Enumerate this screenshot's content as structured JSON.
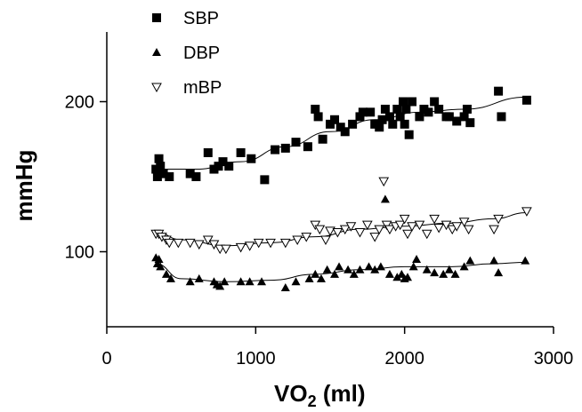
{
  "chart_data": {
    "type": "scatter",
    "title": "",
    "xlabel_main": "VO",
    "xlabel_sub": "2",
    "xlabel_unit": " (ml)",
    "ylabel": "mmHg",
    "xlim": [
      0,
      3000
    ],
    "ylim": [
      50,
      250
    ],
    "x_ticks": [
      0,
      1000,
      2000,
      3000
    ],
    "y_ticks": [
      100,
      200
    ],
    "legend_position": "top-left",
    "grid": false,
    "series": [
      {
        "name": "SBP",
        "marker": "filled-square",
        "color": "#000000",
        "points": [
          [
            330,
            155
          ],
          [
            340,
            150
          ],
          [
            350,
            162
          ],
          [
            360,
            157
          ],
          [
            380,
            152
          ],
          [
            420,
            150
          ],
          [
            560,
            152
          ],
          [
            600,
            150
          ],
          [
            680,
            166
          ],
          [
            720,
            155
          ],
          [
            750,
            157
          ],
          [
            780,
            160
          ],
          [
            820,
            157
          ],
          [
            900,
            166
          ],
          [
            970,
            162
          ],
          [
            1060,
            148
          ],
          [
            1130,
            168
          ],
          [
            1200,
            169
          ],
          [
            1270,
            173
          ],
          [
            1350,
            170
          ],
          [
            1400,
            195
          ],
          [
            1420,
            190
          ],
          [
            1450,
            175
          ],
          [
            1500,
            185
          ],
          [
            1530,
            188
          ],
          [
            1570,
            183
          ],
          [
            1600,
            180
          ],
          [
            1650,
            185
          ],
          [
            1700,
            190
          ],
          [
            1720,
            193
          ],
          [
            1770,
            193
          ],
          [
            1800,
            185
          ],
          [
            1830,
            183
          ],
          [
            1850,
            188
          ],
          [
            1870,
            195
          ],
          [
            1900,
            190
          ],
          [
            1920,
            185
          ],
          [
            1950,
            195
          ],
          [
            1970,
            190
          ],
          [
            1990,
            200
          ],
          [
            2000,
            185
          ],
          [
            2010,
            195
          ],
          [
            2030,
            178
          ],
          [
            2050,
            200
          ],
          [
            2100,
            190
          ],
          [
            2130,
            195
          ],
          [
            2160,
            193
          ],
          [
            2200,
            200
          ],
          [
            2230,
            195
          ],
          [
            2280,
            190
          ],
          [
            2300,
            190
          ],
          [
            2350,
            187
          ],
          [
            2400,
            190
          ],
          [
            2420,
            195
          ],
          [
            2440,
            186
          ],
          [
            2630,
            207
          ],
          [
            2650,
            190
          ],
          [
            2820,
            201
          ]
        ],
        "trend": [
          [
            330,
            155
          ],
          [
            600,
            155
          ],
          [
            900,
            160
          ],
          [
            1200,
            170
          ],
          [
            1500,
            180
          ],
          [
            1800,
            188
          ],
          [
            2100,
            193
          ],
          [
            2400,
            195
          ],
          [
            2820,
            203
          ]
        ]
      },
      {
        "name": "DBP",
        "marker": "filled-triangle",
        "color": "#000000",
        "points": [
          [
            330,
            96
          ],
          [
            340,
            92
          ],
          [
            350,
            95
          ],
          [
            360,
            90
          ],
          [
            400,
            85
          ],
          [
            430,
            82
          ],
          [
            560,
            80
          ],
          [
            620,
            82
          ],
          [
            720,
            80
          ],
          [
            740,
            78
          ],
          [
            760,
            77
          ],
          [
            790,
            80
          ],
          [
            900,
            80
          ],
          [
            960,
            80
          ],
          [
            1040,
            80
          ],
          [
            1200,
            76
          ],
          [
            1270,
            80
          ],
          [
            1360,
            82
          ],
          [
            1400,
            85
          ],
          [
            1440,
            82
          ],
          [
            1480,
            88
          ],
          [
            1530,
            85
          ],
          [
            1560,
            90
          ],
          [
            1620,
            88
          ],
          [
            1660,
            85
          ],
          [
            1700,
            88
          ],
          [
            1760,
            90
          ],
          [
            1800,
            88
          ],
          [
            1840,
            90
          ],
          [
            1870,
            135
          ],
          [
            1900,
            85
          ],
          [
            1950,
            83
          ],
          [
            1980,
            85
          ],
          [
            2000,
            82
          ],
          [
            2020,
            83
          ],
          [
            2060,
            90
          ],
          [
            2080,
            95
          ],
          [
            2150,
            88
          ],
          [
            2200,
            86
          ],
          [
            2260,
            85
          ],
          [
            2300,
            88
          ],
          [
            2340,
            85
          ],
          [
            2400,
            90
          ],
          [
            2440,
            94
          ],
          [
            2600,
            94
          ],
          [
            2630,
            86
          ],
          [
            2810,
            94
          ]
        ],
        "trend": [
          [
            330,
            92
          ],
          [
            500,
            82
          ],
          [
            800,
            80
          ],
          [
            1100,
            81
          ],
          [
            1400,
            85
          ],
          [
            1700,
            88
          ],
          [
            2000,
            90
          ],
          [
            2300,
            90
          ],
          [
            2600,
            92
          ],
          [
            2820,
            93
          ]
        ]
      },
      {
        "name": "mBP",
        "marker": "open-down-triangle",
        "color": "#000000",
        "points": [
          [
            330,
            112
          ],
          [
            350,
            112
          ],
          [
            370,
            110
          ],
          [
            400,
            108
          ],
          [
            420,
            106
          ],
          [
            480,
            106
          ],
          [
            560,
            106
          ],
          [
            620,
            105
          ],
          [
            680,
            108
          ],
          [
            720,
            105
          ],
          [
            760,
            102
          ],
          [
            800,
            102
          ],
          [
            900,
            103
          ],
          [
            960,
            104
          ],
          [
            1020,
            106
          ],
          [
            1100,
            106
          ],
          [
            1200,
            106
          ],
          [
            1280,
            108
          ],
          [
            1340,
            110
          ],
          [
            1400,
            118
          ],
          [
            1430,
            115
          ],
          [
            1470,
            108
          ],
          [
            1500,
            114
          ],
          [
            1550,
            113
          ],
          [
            1600,
            115
          ],
          [
            1640,
            117
          ],
          [
            1700,
            113
          ],
          [
            1750,
            118
          ],
          [
            1800,
            110
          ],
          [
            1830,
            115
          ],
          [
            1860,
            147
          ],
          [
            1880,
            118
          ],
          [
            1900,
            115
          ],
          [
            1940,
            117
          ],
          [
            1970,
            118
          ],
          [
            2000,
            122
          ],
          [
            2020,
            112
          ],
          [
            2050,
            117
          ],
          [
            2100,
            118
          ],
          [
            2150,
            112
          ],
          [
            2200,
            122
          ],
          [
            2230,
            116
          ],
          [
            2280,
            118
          ],
          [
            2320,
            115
          ],
          [
            2350,
            117
          ],
          [
            2400,
            120
          ],
          [
            2430,
            115
          ],
          [
            2600,
            115
          ],
          [
            2630,
            122
          ],
          [
            2820,
            127
          ]
        ],
        "trend": [
          [
            330,
            113
          ],
          [
            500,
            108
          ],
          [
            800,
            104
          ],
          [
            1100,
            106
          ],
          [
            1400,
            110
          ],
          [
            1700,
            115
          ],
          [
            2000,
            117
          ],
          [
            2300,
            119
          ],
          [
            2600,
            122
          ],
          [
            2820,
            126
          ]
        ]
      }
    ]
  }
}
